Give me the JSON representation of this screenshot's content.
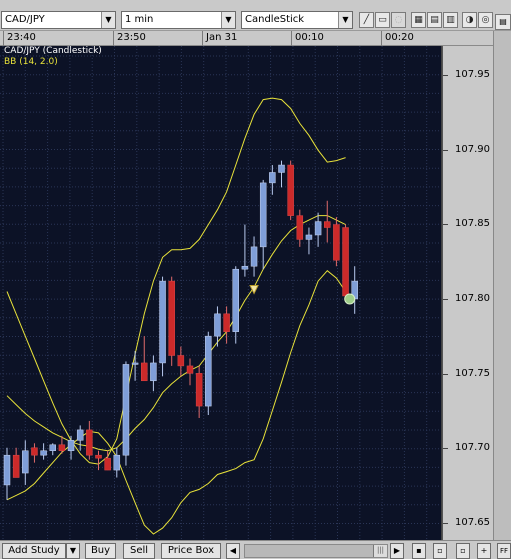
{
  "toolbar": {
    "symbol": "CAD/JPY",
    "interval": "1 min",
    "chart_type": "CandleStick",
    "dropdown_arrow": "▼"
  },
  "time_axis": {
    "labels": [
      "23:40",
      "23:50",
      "Jan 31",
      "00:10",
      "00:20"
    ]
  },
  "chart": {
    "title": "CAD/JPY (Candlestick)",
    "indicator": "BB (14, 2.0)",
    "colors": {
      "background": "#0c1226",
      "grid": "#2a3556",
      "bull": "#7f9ed8",
      "bear": "#cc2a2a",
      "band": "#e8e23a",
      "title_text": "#ffffff",
      "indicator_text": "#e8e23a"
    }
  },
  "price_axis": {
    "labels": [
      "107.95",
      "107.90",
      "107.85",
      "107.80",
      "107.75",
      "107.70",
      "107.65"
    ]
  },
  "chart_data": {
    "type": "candlestick",
    "ylim": [
      107.638,
      107.97
    ],
    "candles": [
      {
        "o": 107.675,
        "h": 107.7,
        "l": 107.665,
        "c": 107.695
      },
      {
        "o": 107.695,
        "h": 107.7,
        "l": 107.68,
        "c": 107.68
      },
      {
        "o": 107.683,
        "h": 107.705,
        "l": 107.675,
        "c": 107.698
      },
      {
        "o": 107.7,
        "h": 107.703,
        "l": 107.69,
        "c": 107.695
      },
      {
        "o": 107.695,
        "h": 107.703,
        "l": 107.692,
        "c": 107.698
      },
      {
        "o": 107.698,
        "h": 107.703,
        "l": 107.695,
        "c": 107.702
      },
      {
        "o": 107.702,
        "h": 107.708,
        "l": 107.696,
        "c": 107.698
      },
      {
        "o": 107.698,
        "h": 107.708,
        "l": 107.692,
        "c": 107.705
      },
      {
        "o": 107.705,
        "h": 107.715,
        "l": 107.698,
        "c": 107.712
      },
      {
        "o": 107.712,
        "h": 107.718,
        "l": 107.692,
        "c": 107.695
      },
      {
        "o": 107.695,
        "h": 107.698,
        "l": 107.685,
        "c": 107.693
      },
      {
        "o": 107.693,
        "h": 107.698,
        "l": 107.685,
        "c": 107.685
      },
      {
        "o": 107.685,
        "h": 107.7,
        "l": 107.68,
        "c": 107.695
      },
      {
        "o": 107.695,
        "h": 107.758,
        "l": 107.688,
        "c": 107.756
      },
      {
        "o": 107.757,
        "h": 107.765,
        "l": 107.745,
        "c": 107.757
      },
      {
        "o": 107.757,
        "h": 107.775,
        "l": 107.748,
        "c": 107.745
      },
      {
        "o": 107.745,
        "h": 107.762,
        "l": 107.738,
        "c": 107.757
      },
      {
        "o": 107.757,
        "h": 107.815,
        "l": 107.748,
        "c": 107.812
      },
      {
        "o": 107.812,
        "h": 107.815,
        "l": 107.755,
        "c": 107.762
      },
      {
        "o": 107.762,
        "h": 107.768,
        "l": 107.748,
        "c": 107.755
      },
      {
        "o": 107.755,
        "h": 107.76,
        "l": 107.742,
        "c": 107.75
      },
      {
        "o": 107.75,
        "h": 107.755,
        "l": 107.72,
        "c": 107.728
      },
      {
        "o": 107.728,
        "h": 107.778,
        "l": 107.722,
        "c": 107.775
      },
      {
        "o": 107.775,
        "h": 107.795,
        "l": 107.768,
        "c": 107.79
      },
      {
        "o": 107.79,
        "h": 107.795,
        "l": 107.77,
        "c": 107.778
      },
      {
        "o": 107.778,
        "h": 107.822,
        "l": 107.77,
        "c": 107.82
      },
      {
        "o": 107.82,
        "h": 107.85,
        "l": 107.815,
        "c": 107.822
      },
      {
        "o": 107.822,
        "h": 107.842,
        "l": 107.815,
        "c": 107.835
      },
      {
        "o": 107.835,
        "h": 107.88,
        "l": 107.82,
        "c": 107.878
      },
      {
        "o": 107.878,
        "h": 107.89,
        "l": 107.87,
        "c": 107.885
      },
      {
        "o": 107.885,
        "h": 107.893,
        "l": 107.875,
        "c": 107.89
      },
      {
        "o": 107.89,
        "h": 107.893,
        "l": 107.853,
        "c": 107.856
      },
      {
        "o": 107.856,
        "h": 107.86,
        "l": 107.835,
        "c": 107.84
      },
      {
        "o": 107.84,
        "h": 107.848,
        "l": 107.83,
        "c": 107.843
      },
      {
        "o": 107.843,
        "h": 107.858,
        "l": 107.835,
        "c": 107.852
      },
      {
        "o": 107.852,
        "h": 107.866,
        "l": 107.838,
        "c": 107.848
      },
      {
        "o": 107.85,
        "h": 107.855,
        "l": 107.822,
        "c": 107.826
      },
      {
        "o": 107.848,
        "h": 107.85,
        "l": 107.798,
        "c": 107.802
      },
      {
        "o": 107.8,
        "h": 107.822,
        "l": 107.79,
        "c": 107.812
      }
    ],
    "bb_upper": [
      107.805,
      107.79,
      107.775,
      107.76,
      107.745,
      107.73,
      107.716,
      107.705,
      107.696,
      107.69,
      107.689,
      107.694,
      107.706,
      107.735,
      107.763,
      107.79,
      107.812,
      107.828,
      107.833,
      107.833,
      107.834,
      107.84,
      107.85,
      107.86,
      107.872,
      107.89,
      107.908,
      107.924,
      107.934,
      107.935,
      107.934,
      107.928,
      107.918,
      107.91,
      107.9,
      107.892,
      107.893,
      107.895
    ],
    "bb_middle": [
      107.735,
      107.729,
      107.723,
      107.718,
      107.714,
      107.71,
      107.707,
      107.704,
      107.702,
      107.701,
      107.699,
      107.698,
      107.7,
      107.706,
      107.713,
      107.719,
      107.727,
      107.737,
      107.743,
      107.748,
      107.752,
      107.755,
      107.763,
      107.771,
      107.778,
      107.788,
      107.799,
      107.808,
      107.82,
      107.83,
      107.839,
      107.846,
      107.85,
      107.853,
      107.856,
      107.856,
      107.853,
      107.85
    ],
    "bb_lower": [
      107.665,
      107.668,
      107.671,
      107.676,
      107.683,
      107.69,
      107.697,
      107.702,
      107.707,
      107.711,
      107.71,
      107.703,
      107.694,
      107.678,
      107.663,
      107.648,
      107.642,
      107.646,
      107.653,
      107.663,
      107.67,
      107.672,
      107.676,
      107.682,
      107.684,
      107.686,
      107.69,
      107.692,
      107.706,
      107.725,
      107.744,
      107.764,
      107.782,
      107.796,
      107.812,
      107.819,
      107.814,
      107.805
    ]
  },
  "bottom_bar": {
    "add_study": "Add Study",
    "buy": "Buy",
    "sell": "Sell",
    "price_box": "Price Box",
    "scroll_left": "◀",
    "scroll_right": "▶",
    "add": "+",
    "collapse": "FF"
  }
}
